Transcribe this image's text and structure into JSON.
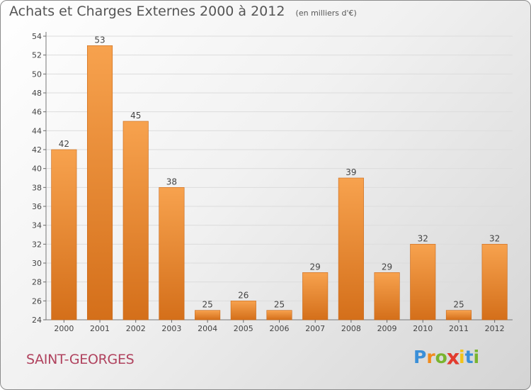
{
  "chart_data": {
    "type": "bar",
    "title": "Achats et Charges Externes 2000 à 2012",
    "subtitle": "(en milliers d'€)",
    "xlabel": "",
    "ylabel": "",
    "categories": [
      "2000",
      "2001",
      "2002",
      "2003",
      "2004",
      "2005",
      "2006",
      "2007",
      "2008",
      "2009",
      "2010",
      "2011",
      "2012"
    ],
    "values": [
      42,
      53,
      45,
      38,
      25,
      26,
      25,
      29,
      39,
      29,
      32,
      25,
      32
    ],
    "ylim": [
      24,
      54
    ],
    "yticks": [
      24,
      26,
      28,
      30,
      32,
      34,
      36,
      38,
      40,
      42,
      44,
      46,
      48,
      50,
      52,
      54
    ],
    "grid": true,
    "legend": "none",
    "bar_color_top": "#f7a24e",
    "bar_color_bottom": "#d46f1a"
  },
  "footer": {
    "city": "SAINT-GEORGES",
    "logo_letters": [
      "P",
      "r",
      "o",
      "x",
      "i",
      "t",
      "i"
    ],
    "logo_colors": [
      "#3a8fd8",
      "#f08a1c",
      "#79b42e",
      "#e23b2e",
      "#f2c318",
      "#3a8fd8",
      "#79b42e"
    ]
  }
}
